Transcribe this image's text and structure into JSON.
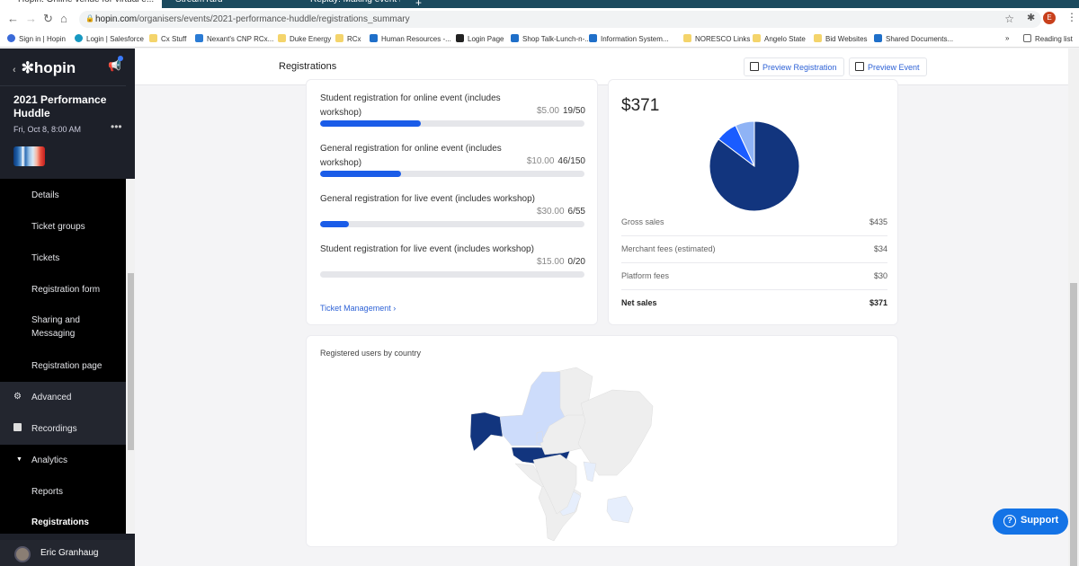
{
  "browser": {
    "tabs": [
      {
        "label": "Hopin: Online venue for virtual e...",
        "active": true
      },
      {
        "label": "StreamYard",
        "active": false
      },
      {
        "label": "Replay: Making event recordings...",
        "active": false
      }
    ],
    "url_domain": "hopin.com",
    "url_path": "/organisers/events/2021-performance-huddle/registrations_summary",
    "profile_initial": "E",
    "bookmarks": [
      "Sign in | Hopin",
      "Login | Salesforce",
      "Cx Stuff",
      "Nexant's CNP RCx...",
      "Duke Energy",
      "RCx",
      "Human Resources -...",
      "Login Page",
      "Shop Talk-Lunch-n-...",
      "Information System...",
      "NORESCO Links",
      "Angelo State",
      "Bid Websites",
      "Shared Documents..."
    ],
    "reading_list": "Reading list"
  },
  "sidebar": {
    "logo": "hopin",
    "event_title": "2021 Performance Huddle",
    "event_date": "Fri, Oct 8, 8:00 AM",
    "items": [
      {
        "label": "Details"
      },
      {
        "label": "Ticket groups"
      },
      {
        "label": "Tickets"
      },
      {
        "label": "Registration form"
      },
      {
        "label": "Sharing and Messaging"
      },
      {
        "label": "Registration page"
      },
      {
        "label": "Advanced",
        "icon": "gear-icon"
      },
      {
        "label": "Recordings",
        "icon": "recording-icon"
      },
      {
        "label": "Analytics",
        "icon": "caret-down-icon"
      },
      {
        "label": "Reports"
      },
      {
        "label": "Registrations",
        "active": true
      }
    ],
    "user": "Eric Granhaug"
  },
  "header": {
    "title": "Registrations",
    "preview_registration": "Preview Registration",
    "preview_event": "Preview Event"
  },
  "tickets": [
    {
      "name": "Student registration for online event (includes workshop)",
      "price": "$5.00",
      "sold": "19/50",
      "fill": 0.38
    },
    {
      "name": "General registration for online event (includes workshop)",
      "price": "$10.00",
      "sold": "46/150",
      "fill": 0.3067
    },
    {
      "name": "General registration for live event (includes workshop)",
      "price": "$30.00",
      "sold": "6/55",
      "fill": 0.109
    },
    {
      "name": "Student registration for live event (includes workshop)",
      "price": "$15.00",
      "sold": "0/20",
      "fill": 0
    }
  ],
  "ticket_management": "Ticket Management",
  "sales": {
    "total": "$371",
    "rows": [
      {
        "label": "Gross sales",
        "value": "$435"
      },
      {
        "label": "Merchant fees (estimated)",
        "value": "$34"
      },
      {
        "label": "Platform fees",
        "value": "$30"
      },
      {
        "label": "Net sales",
        "value": "$371"
      }
    ]
  },
  "chart_data": {
    "type": "pie",
    "values": [
      371,
      34,
      30
    ],
    "colors": [
      "#12357e",
      "#1a5cff",
      "#8fb3f5"
    ]
  },
  "map": {
    "title": "Registered users by country",
    "colors": {
      "high": "#12357e",
      "low": "#cddcfb",
      "lowest": "#e6eefc",
      "none": "#eeeeee"
    }
  },
  "support": "Support"
}
